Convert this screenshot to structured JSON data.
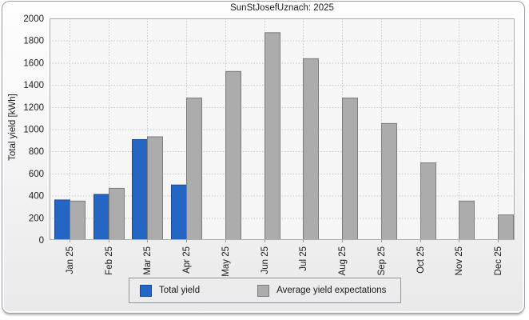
{
  "chart_data": {
    "type": "bar",
    "title": "SunStJosefUznach: 2025",
    "ylabel": "Total yield [kWh]",
    "xlabel": "",
    "categories": [
      "Jan 25",
      "Feb 25",
      "Mar 25",
      "Apr 25",
      "May 25",
      "Jun 25",
      "Jul 25",
      "Aug 25",
      "Sep 25",
      "Oct 25",
      "Nov 25",
      "Dec 25"
    ],
    "series": [
      {
        "name": "Total yield",
        "color": "#2565c3",
        "border_color": "#17499c",
        "values": [
          365,
          415,
          910,
          500,
          null,
          null,
          null,
          null,
          null,
          null,
          null,
          null
        ]
      },
      {
        "name": "Average yield expectations",
        "color": "#acacac",
        "border_color": "#7c7c7c",
        "values": [
          355,
          470,
          935,
          1285,
          1525,
          1875,
          1640,
          1285,
          1055,
          700,
          355,
          230
        ]
      }
    ],
    "ylim": [
      0,
      2000
    ],
    "ytick_step": 200,
    "yticks": [
      0,
      200,
      400,
      600,
      800,
      1000,
      1200,
      1400,
      1600,
      1800,
      2000
    ],
    "grid": true,
    "grid_style": "dotted",
    "legend_position": "bottom",
    "x_tick_rotation": -90
  },
  "colors": {
    "plot_background": "#f6f6f6",
    "grid_line": "#c7c7c7",
    "plot_frame": "#aeaeae",
    "window_border": "#9aa0a8",
    "text": "#1b1b1b"
  }
}
